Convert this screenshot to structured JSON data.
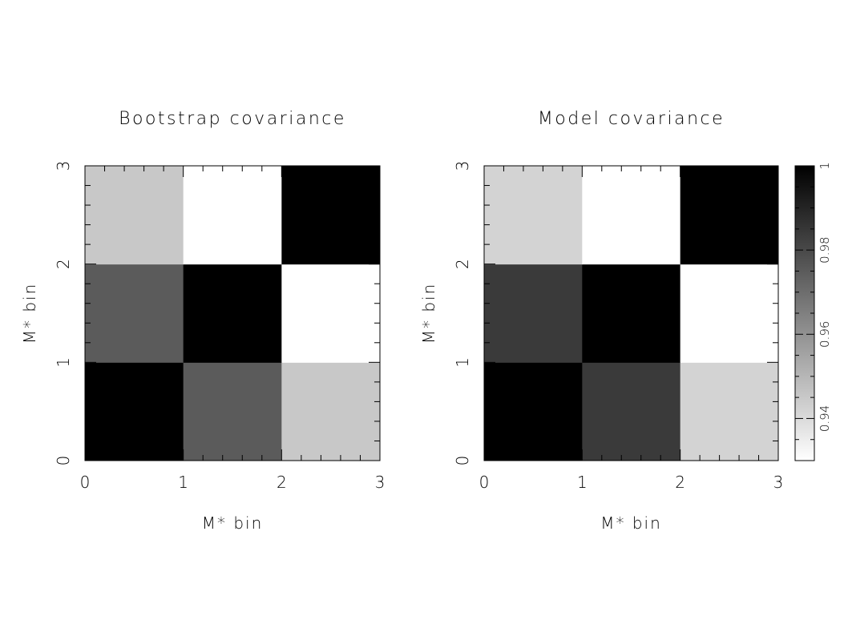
{
  "chart_data": [
    {
      "type": "heatmap",
      "title": "Bootstrap covariance",
      "xlabel": "M* bin",
      "ylabel": "M* bin",
      "xlim": [
        0,
        3
      ],
      "ylim": [
        0,
        3
      ],
      "x_ticks": [
        "0",
        "1",
        "2",
        "3"
      ],
      "y_ticks": [
        "0",
        "1",
        "2",
        "3"
      ],
      "values": [
        [
          1.0,
          0.975,
          0.945
        ],
        [
          0.975,
          1.0,
          0.93
        ],
        [
          0.945,
          0.93,
          1.0
        ]
      ]
    },
    {
      "type": "heatmap",
      "title": "Model covariance",
      "xlabel": "M* bin",
      "ylabel": "M* bin",
      "xlim": [
        0,
        3
      ],
      "ylim": [
        0,
        3
      ],
      "x_ticks": [
        "0",
        "1",
        "2",
        "3"
      ],
      "y_ticks": [
        "0",
        "1",
        "2",
        "3"
      ],
      "values": [
        [
          1.0,
          0.984,
          0.942
        ],
        [
          0.984,
          1.0,
          0.93
        ],
        [
          0.942,
          0.93,
          1.0
        ]
      ]
    }
  ],
  "colorbar": {
    "range": [
      0.93,
      1.0
    ],
    "ticks": [
      {
        "value": 0.94,
        "label": "0.94"
      },
      {
        "value": 0.96,
        "label": "0.96"
      },
      {
        "value": 0.98,
        "label": "0.98"
      },
      {
        "value": 1.0,
        "label": "1"
      }
    ],
    "colormap": "gray-inverted",
    "low_color": "#ffffff",
    "high_color": "#000000"
  }
}
